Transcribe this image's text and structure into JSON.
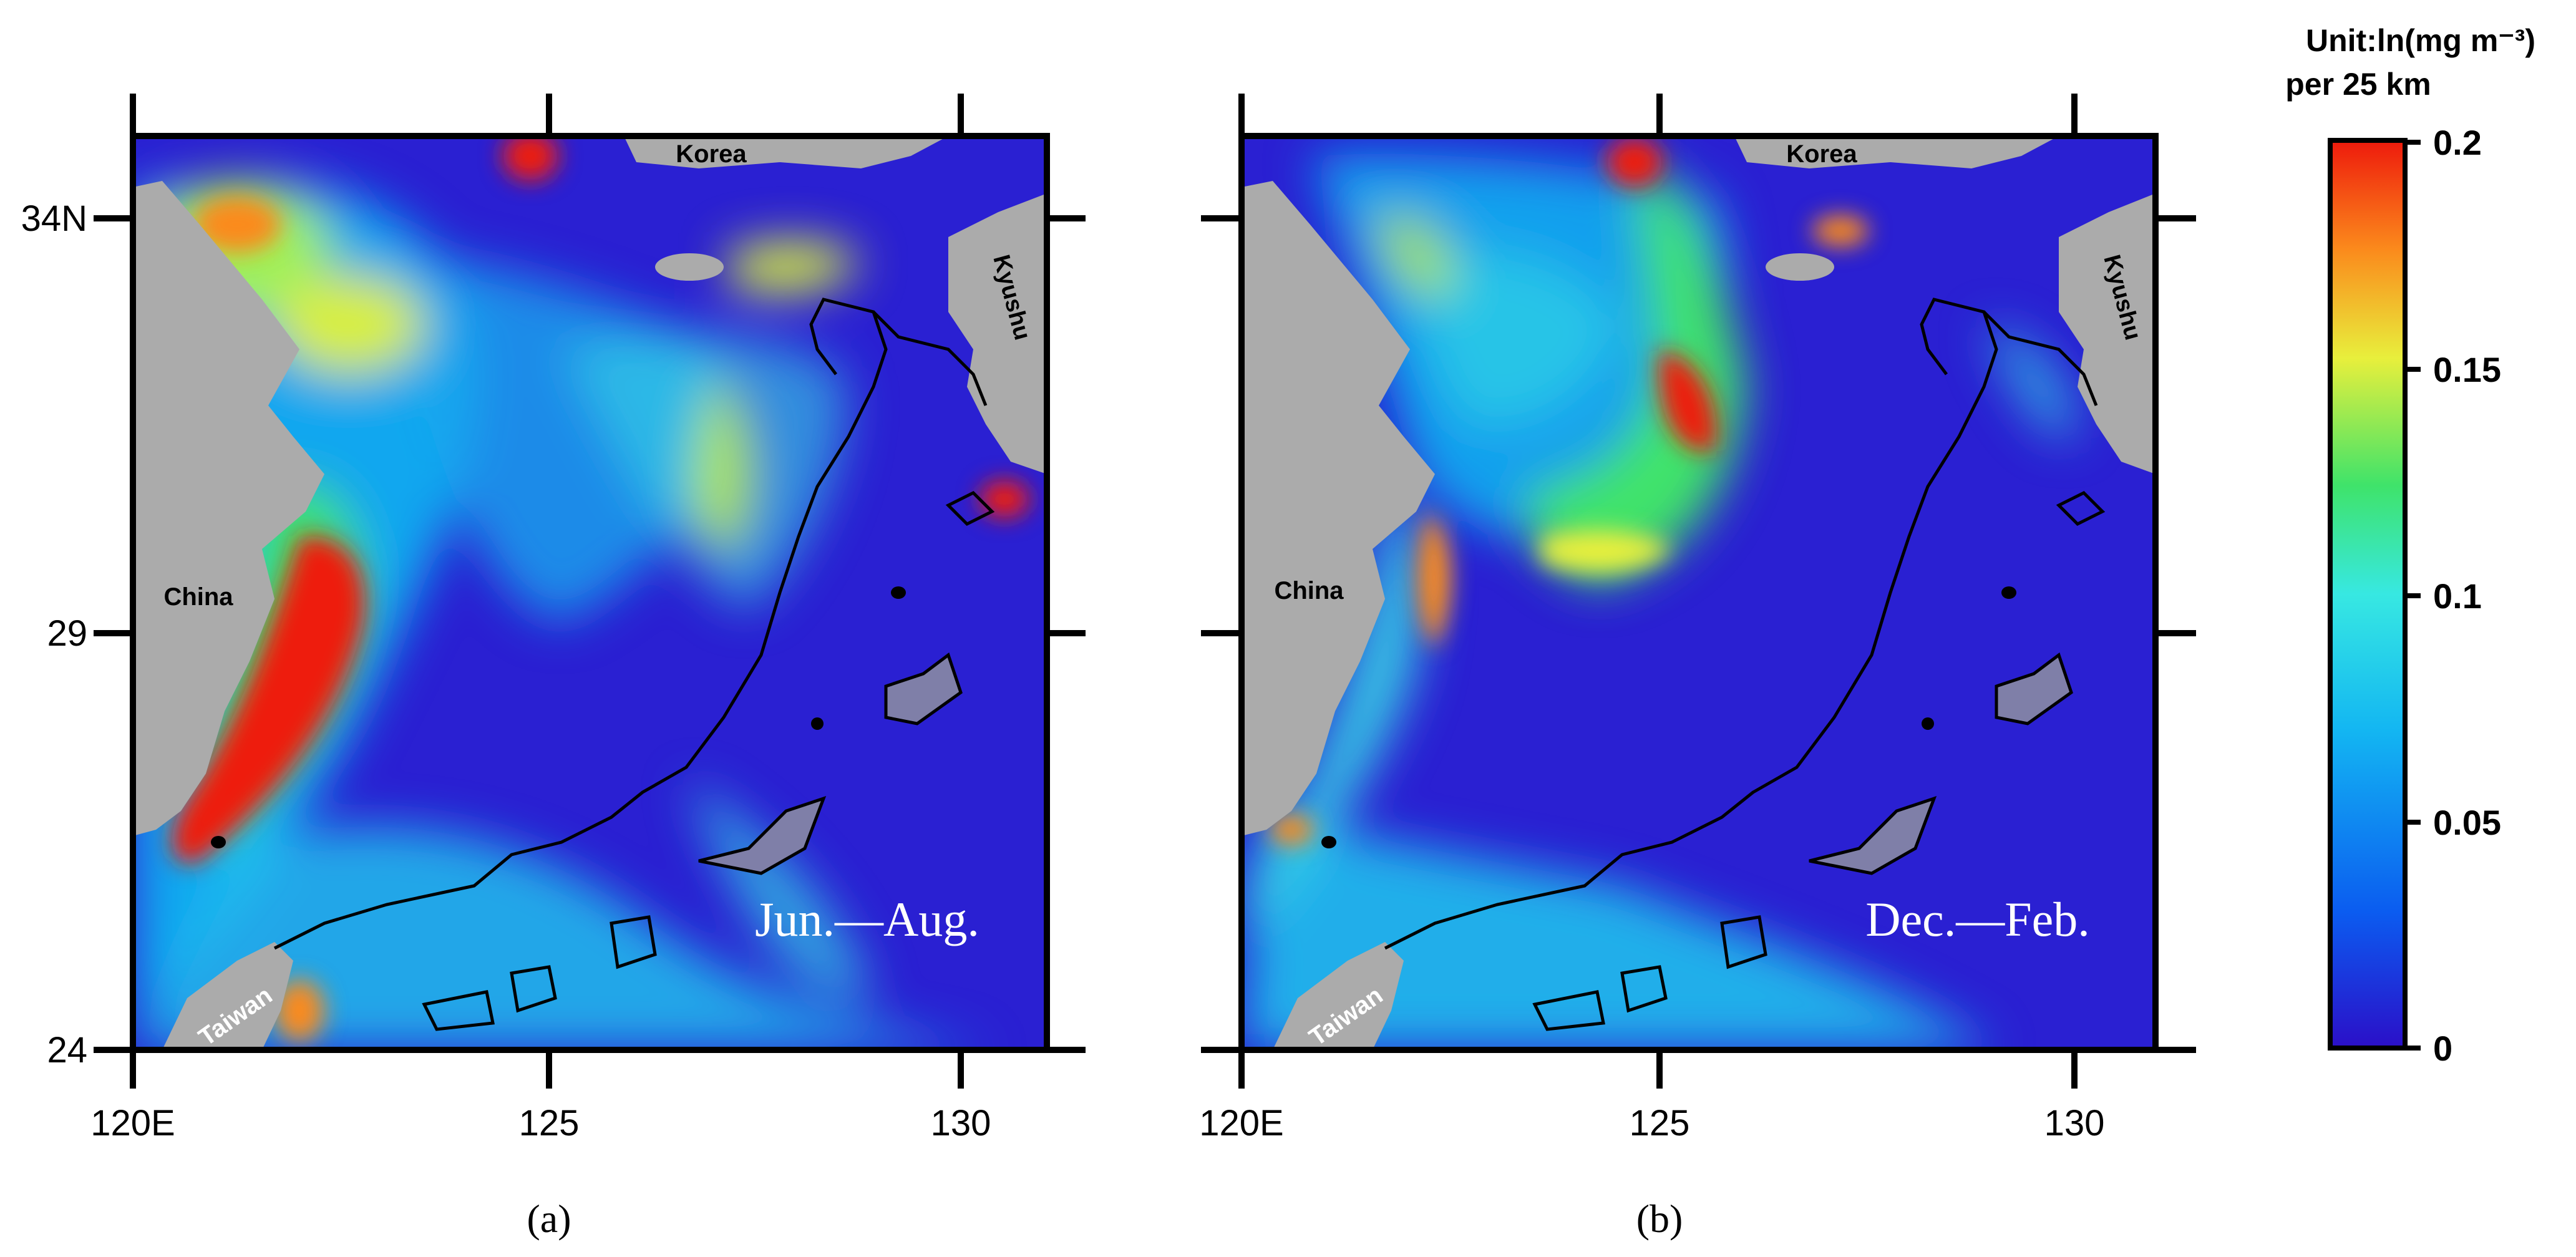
{
  "figure": {
    "panels": [
      {
        "id": "a",
        "caption": "(a)",
        "season_label": "Jun.—Aug.",
        "place_labels": {
          "korea": "Korea",
          "kyushu": "Kyushu",
          "china": "China",
          "taiwan": "Taiwan"
        },
        "x_ticks": [
          "120E",
          "125",
          "130"
        ],
        "y_ticks": [
          "34N",
          "29",
          "24"
        ]
      },
      {
        "id": "b",
        "caption": "(b)",
        "season_label": "Dec.—Feb.",
        "place_labels": {
          "korea": "Korea",
          "kyushu": "Kyushu",
          "china": "China",
          "taiwan": "Taiwan"
        },
        "x_ticks": [
          "120E",
          "125",
          "130"
        ],
        "y_ticks": []
      }
    ],
    "colorbar": {
      "title_line1": "Unit:ln(mg m⁻³)",
      "title_line2": "per 25 km",
      "ticks": [
        "0.2",
        "0.15",
        "0.1",
        "0.05",
        "0"
      ],
      "range": [
        0,
        0.2
      ],
      "colors": [
        "#2b0fc8",
        "#0b5cf0",
        "#13b6f2",
        "#37e8e2",
        "#3fe36a",
        "#e8ef3c",
        "#fb8a1c",
        "#ee1a0c"
      ]
    },
    "colors": {
      "land": "#ababab",
      "ocean_low": "#2a20d2",
      "frame": "#000000"
    }
  }
}
